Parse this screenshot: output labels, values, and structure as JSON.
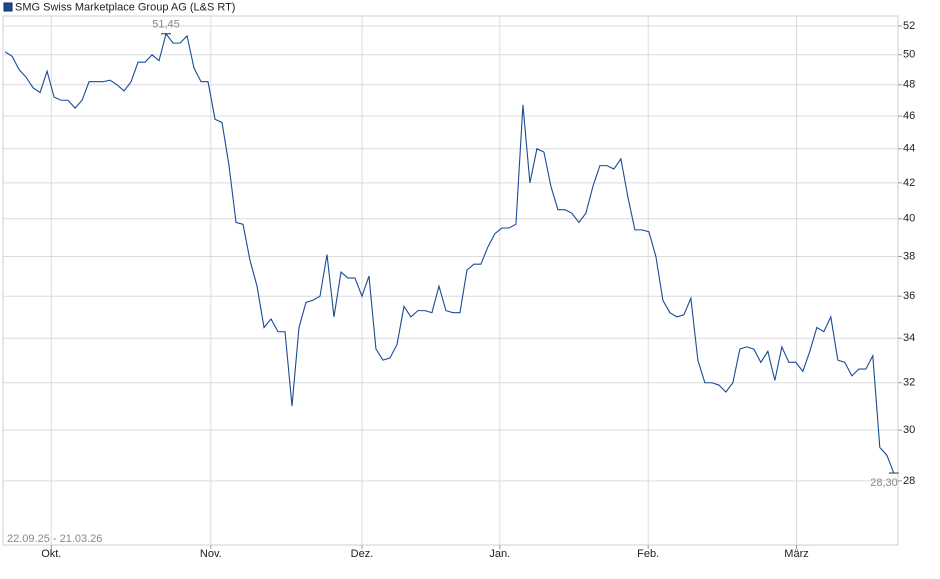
{
  "chart_data": {
    "type": "line",
    "legend": "top-left",
    "date_range": "22.09.25 - 21.03.26",
    "log_scale": true,
    "grid": true,
    "x": [
      0,
      1,
      2,
      3,
      4,
      5,
      6,
      7,
      8,
      9,
      10,
      11,
      12,
      13,
      14,
      15,
      16,
      17,
      18,
      19,
      20,
      21,
      22,
      23,
      24,
      25,
      26,
      27,
      28,
      29,
      30,
      31,
      32,
      33,
      34,
      35,
      36,
      37,
      38,
      39,
      40,
      41,
      42,
      43,
      44,
      45,
      46,
      47,
      48,
      49,
      50,
      51,
      52,
      53,
      54,
      55,
      56,
      57,
      58,
      59,
      60,
      61,
      62,
      63,
      64,
      65,
      66,
      67,
      68,
      69,
      70,
      71,
      72,
      73,
      74,
      75,
      76,
      77,
      78,
      79,
      80,
      81,
      82,
      83,
      84,
      85,
      86,
      87,
      88,
      89,
      90,
      91,
      92,
      93,
      94,
      95,
      96,
      97,
      98,
      99,
      100,
      101,
      102,
      103,
      104,
      105,
      106,
      107,
      108,
      109,
      110,
      111,
      112,
      113,
      114,
      115,
      116,
      117,
      118,
      119,
      120,
      121,
      122,
      123,
      124,
      125,
      126,
      127
    ],
    "series": [
      {
        "name": "SMG Swiss Marketplace Group AG (L&S RT)",
        "color": "#1a4a96",
        "values": [
          50.2,
          49.9,
          49.0,
          48.5,
          47.8,
          47.5,
          48.9,
          47.2,
          47.0,
          47.0,
          46.5,
          47.0,
          48.2,
          48.2,
          48.2,
          48.3,
          48.0,
          47.6,
          48.2,
          49.5,
          49.5,
          50.0,
          49.6,
          51.45,
          50.8,
          50.8,
          51.3,
          49.1,
          48.2,
          48.2,
          45.8,
          45.6,
          43.0,
          39.8,
          39.7,
          37.8,
          36.5,
          34.5,
          34.9,
          34.3,
          34.3,
          31.0,
          34.5,
          35.7,
          35.8,
          36.0,
          38.1,
          35.0,
          37.2,
          36.9,
          36.9,
          36.0,
          37.0,
          33.5,
          33.0,
          33.1,
          33.7,
          35.5,
          35.0,
          35.3,
          35.3,
          35.2,
          36.5,
          35.3,
          35.2,
          35.2,
          37.3,
          37.6,
          37.6,
          38.5,
          39.2,
          39.5,
          39.5,
          39.7,
          46.7,
          42.0,
          44.0,
          43.8,
          41.8,
          40.5,
          40.5,
          40.3,
          39.8,
          40.3,
          41.8,
          43.0,
          43.0,
          42.8,
          43.4,
          41.2,
          39.4,
          39.4,
          39.3,
          38.0,
          35.8,
          35.2,
          35.0,
          35.1,
          35.9,
          33.0,
          32.0,
          32.0,
          31.9,
          31.6,
          32.0,
          33.5,
          33.6,
          33.5,
          32.9,
          33.4,
          32.1,
          33.6,
          32.9,
          32.9,
          32.5,
          33.4,
          34.5,
          34.3,
          35.0,
          33.0,
          32.9,
          32.3,
          32.6,
          32.6,
          33.2,
          29.3,
          29.0,
          28.3
        ],
        "value_labels": [
          null,
          null,
          null,
          null,
          null,
          null,
          null,
          null,
          null,
          null,
          null,
          null,
          null,
          null,
          null,
          null,
          null,
          null,
          null,
          null,
          null,
          null,
          null,
          "51,45",
          null,
          null,
          null,
          null,
          null,
          null,
          null,
          null,
          null,
          null,
          null,
          null,
          null,
          null,
          null,
          null,
          null,
          null,
          null,
          null,
          null,
          null,
          null,
          null,
          null,
          null,
          null,
          null,
          null,
          null,
          null,
          null,
          null,
          null,
          null,
          null,
          null,
          null,
          null,
          null,
          null,
          null,
          null,
          null,
          null,
          null,
          null,
          null,
          null,
          null,
          null,
          null,
          null,
          null,
          null,
          null,
          null,
          null,
          null,
          null,
          null,
          null,
          null,
          null,
          null,
          null,
          null,
          null,
          null,
          null,
          null,
          null,
          null,
          null,
          null,
          null,
          null,
          null,
          null,
          null,
          null,
          null,
          null,
          null,
          null,
          null,
          null,
          null,
          null,
          null,
          null,
          null,
          null,
          null,
          null,
          null,
          null,
          null,
          null,
          null,
          null,
          null,
          null,
          "28,30"
        ]
      }
    ],
    "xlim": [
      -0.3,
      127.6
    ],
    "xticks": [
      {
        "value": 6.6,
        "label": "Okt."
      },
      {
        "value": 29.4,
        "label": "Nov."
      },
      {
        "value": 51,
        "label": "Dez."
      },
      {
        "value": 70.7,
        "label": "Jan."
      },
      {
        "value": 91.9,
        "label": "Feb."
      },
      {
        "value": 113.1,
        "label": "März"
      }
    ],
    "ylim": [
      25.66,
      52.71
    ],
    "yticks": [
      28,
      30,
      32,
      34,
      36,
      38,
      40,
      42,
      44,
      46,
      48,
      50,
      52
    ]
  }
}
